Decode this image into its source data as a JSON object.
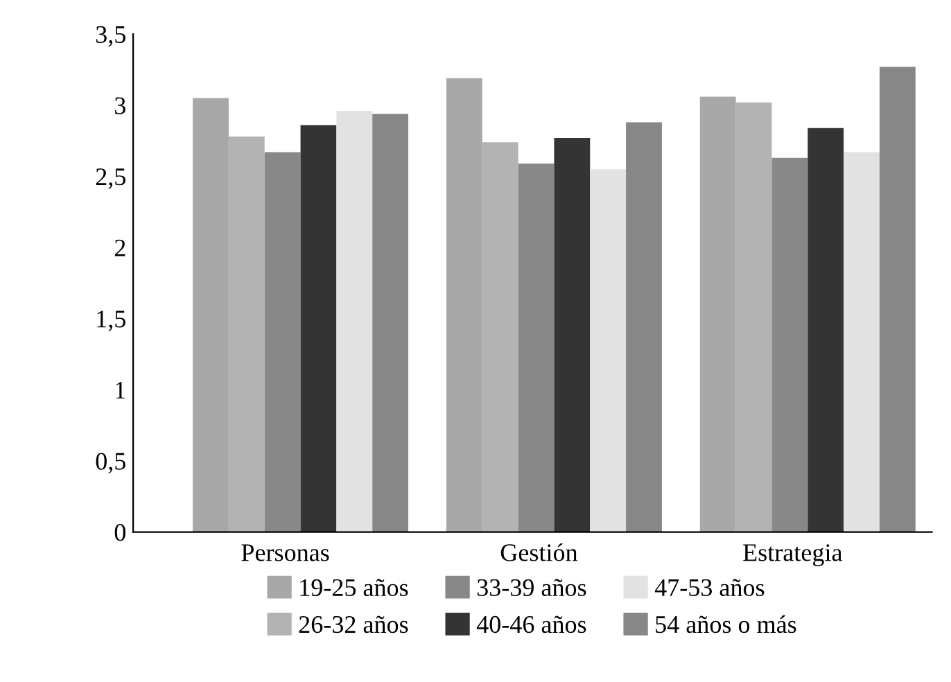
{
  "chart_data": {
    "type": "bar",
    "categories": [
      "Personas",
      "Gestión",
      "Estrategia"
    ],
    "series": [
      {
        "name": "19-25 años",
        "color": "#a8a8a8",
        "values": [
          3.05,
          3.19,
          3.06
        ]
      },
      {
        "name": "26-32 años",
        "color": "#b3b3b3",
        "values": [
          2.78,
          2.74,
          3.02
        ]
      },
      {
        "name": "33-39 años",
        "color": "#888888",
        "values": [
          2.67,
          2.59,
          2.63
        ]
      },
      {
        "name": "40-46 años",
        "color": "#353435",
        "values": [
          2.86,
          2.77,
          2.84
        ]
      },
      {
        "name": "47-53 años",
        "color": "#e2e2e2",
        "values": [
          2.96,
          2.55,
          2.67
        ]
      },
      {
        "name": "54 años o más",
        "color": "#878787",
        "values": [
          2.94,
          2.88,
          3.27
        ]
      }
    ],
    "ylim": [
      0,
      3.5
    ],
    "yticks": [
      {
        "value": 0,
        "label": "0"
      },
      {
        "value": 0.5,
        "label": "0,5"
      },
      {
        "value": 1,
        "label": "1"
      },
      {
        "value": 1.5,
        "label": "1,5"
      },
      {
        "value": 2,
        "label": "2"
      },
      {
        "value": 2.5,
        "label": "2,5"
      },
      {
        "value": 3,
        "label": "3"
      },
      {
        "value": 3.5,
        "label": "3,5"
      }
    ],
    "grid": false,
    "legend": "bottom"
  }
}
